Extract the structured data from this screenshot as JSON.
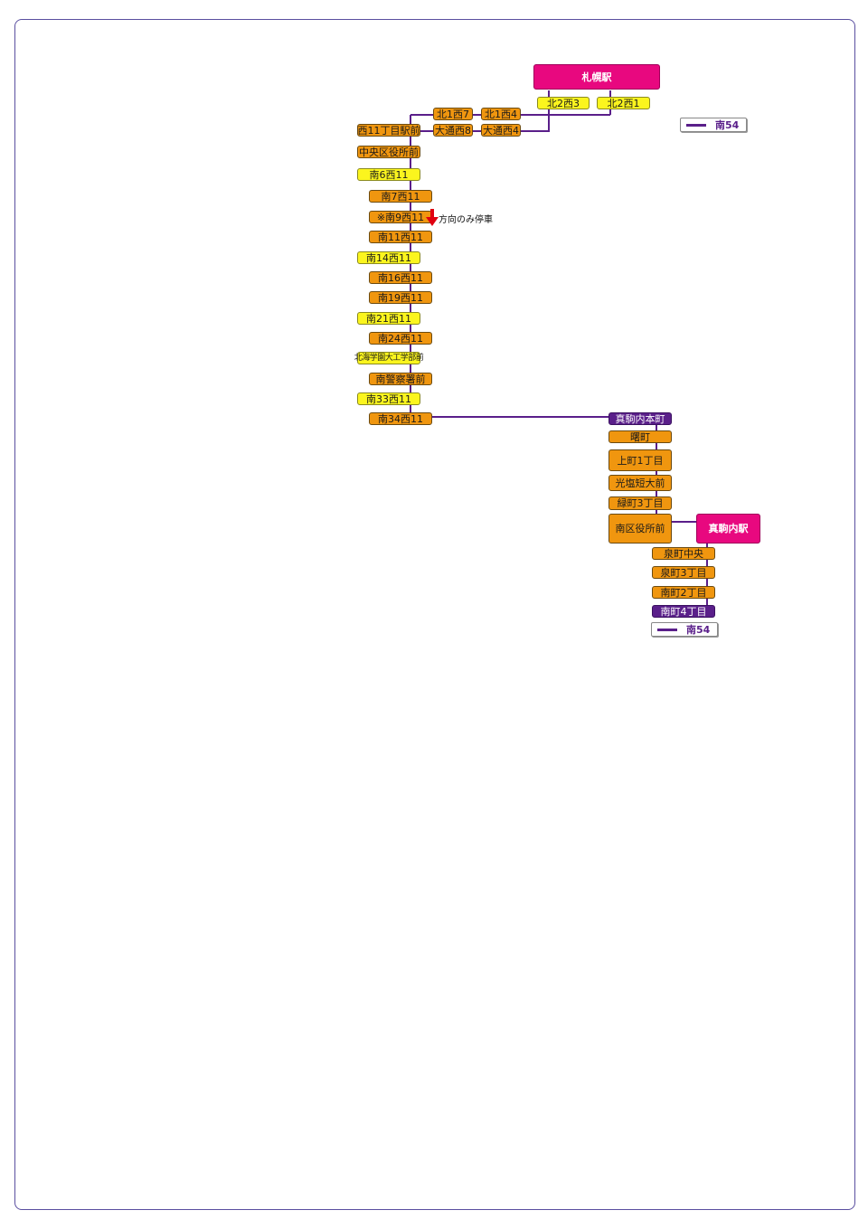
{
  "stations": {
    "sapporo": "札幌駅",
    "makomanai": "真駒内駅"
  },
  "stops": {
    "kita2nishi3": "北2西3",
    "kita2nishi1": "北2西1",
    "kita1nishi7": "北1西7",
    "kita1nishi4": "北1西4",
    "nishi11": "西11丁目駅前",
    "odori8": "大通西8",
    "odori4": "大通西4",
    "chuo_kuyakusho": "中央区役所前",
    "s6w11": "南6西11",
    "s7w11": "南7西11",
    "s9w11": "※南9西11",
    "s11w11": "南11西11",
    "s14w11": "南14西11",
    "s16w11": "南16西11",
    "s19w11": "南19西11",
    "s21w11": "南21西11",
    "s24w11": "南24西11",
    "hokkai_gakuen": "北海学園大工学部前",
    "minami_keisatsu": "南警察署前",
    "s33w11": "南33西11",
    "s34w11": "南34西11",
    "makomanai_honcho": "真駒内本町",
    "akebono": "曙町",
    "kamimachi": "上町1丁目",
    "koen_tandai": "光塩短大前",
    "midorimachi": "緑町3丁目",
    "minami_kuyakusho": "南区役所前",
    "izumimachi_chuo": "泉町中央",
    "izumimachi3": "泉町3丁目",
    "minamimachi2": "南町2丁目",
    "minamimachi4": "南町4丁目"
  },
  "note": "方向のみ停車",
  "legend": {
    "route": "南54"
  },
  "colors": {
    "route_line": "#5a1f8a",
    "station": "#e8087f",
    "stop_orange": "#f0960f",
    "stop_yellow": "#fbf51e",
    "terminal_purple": "#5a1f8a",
    "arrow": "#e00010"
  }
}
